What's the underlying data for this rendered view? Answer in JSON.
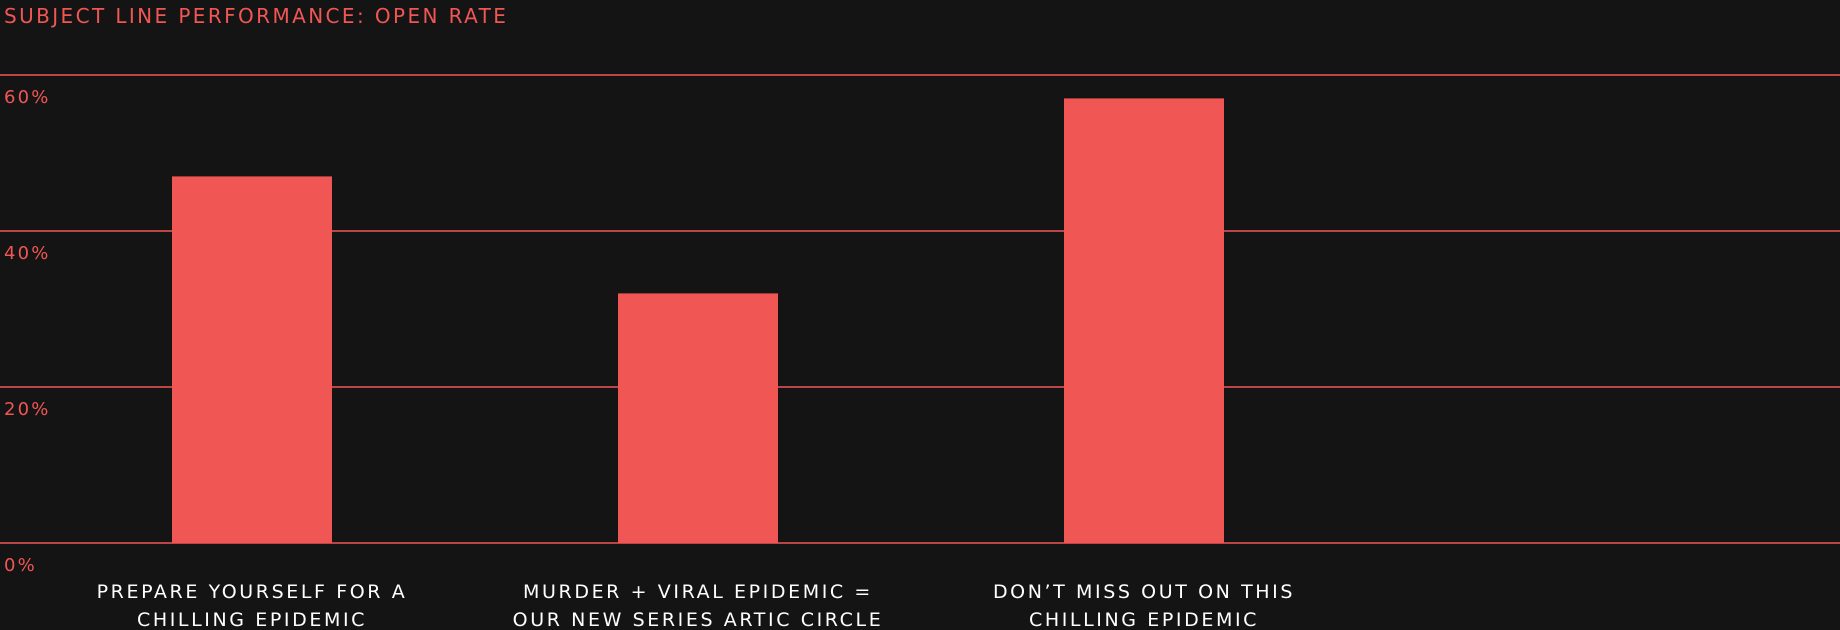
{
  "colors": {
    "background": "#141414",
    "accent": "#f05654",
    "text": "#ffffff"
  },
  "chart_data": {
    "type": "bar",
    "title": "SUBJECT LINE PERFORMANCE: OPEN RATE",
    "xlabel": "",
    "ylabel": "",
    "categories": [
      "PREPARE YOURSELF FOR A CHILLING EPIDEMIC",
      "MURDER + VIRAL EPIDEMIC = OUR NEW SERIES ARTIC CIRCLE",
      "DON’T MISS OUT ON THIS CHILLING EPIDEMIC"
    ],
    "category_lines": [
      [
        "PREPARE YOURSELF FOR A",
        "CHILLING EPIDEMIC"
      ],
      [
        "MURDER + VIRAL EPIDEMIC =",
        "OUR NEW SERIES ARTIC CIRCLE"
      ],
      [
        "DON’T MISS OUT ON THIS",
        "CHILLING EPIDEMIC"
      ]
    ],
    "values": [
      47,
      32,
      57
    ],
    "ylim": [
      0,
      65
    ],
    "yticks": [
      0,
      20,
      40,
      60
    ],
    "ytick_labels": [
      "0%",
      "20%",
      "40%",
      "60%"
    ],
    "y_unit": "%",
    "grid": true,
    "legend": "none"
  }
}
